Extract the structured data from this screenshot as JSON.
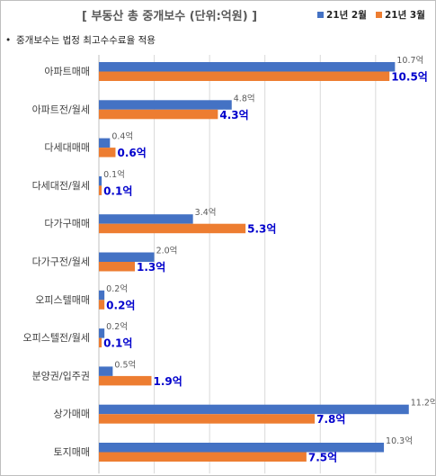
{
  "chart_data": {
    "type": "bar",
    "orientation": "horizontal",
    "title": "[ 부동산 총 중개보수 (단위:억원) ]",
    "note_bullet": "•",
    "note": "중개보수는 법정 최고수수료율 적용",
    "unit_suffix": "억",
    "categories": [
      "아파트매매",
      "아파트전/월세",
      "다세대매매",
      "다세대전/월세",
      "다가구매매",
      "다가구전/월세",
      "오피스텔매매",
      "오피스텔전/월세",
      "분양권/입주권",
      "상가매매",
      "토지매매"
    ],
    "series": [
      {
        "name": "21년 2월",
        "color": "#4472c4",
        "values": [
          10.7,
          4.8,
          0.4,
          0.1,
          3.4,
          2.0,
          0.2,
          0.2,
          0.5,
          11.2,
          10.3
        ]
      },
      {
        "name": "21년 3월",
        "color": "#ed7d31",
        "values": [
          10.5,
          4.3,
          0.6,
          0.1,
          5.3,
          1.3,
          0.2,
          0.1,
          1.9,
          7.8,
          7.5
        ]
      }
    ],
    "xlim": [
      0,
      11.5
    ],
    "grid": true,
    "legend_position": "top-right"
  }
}
